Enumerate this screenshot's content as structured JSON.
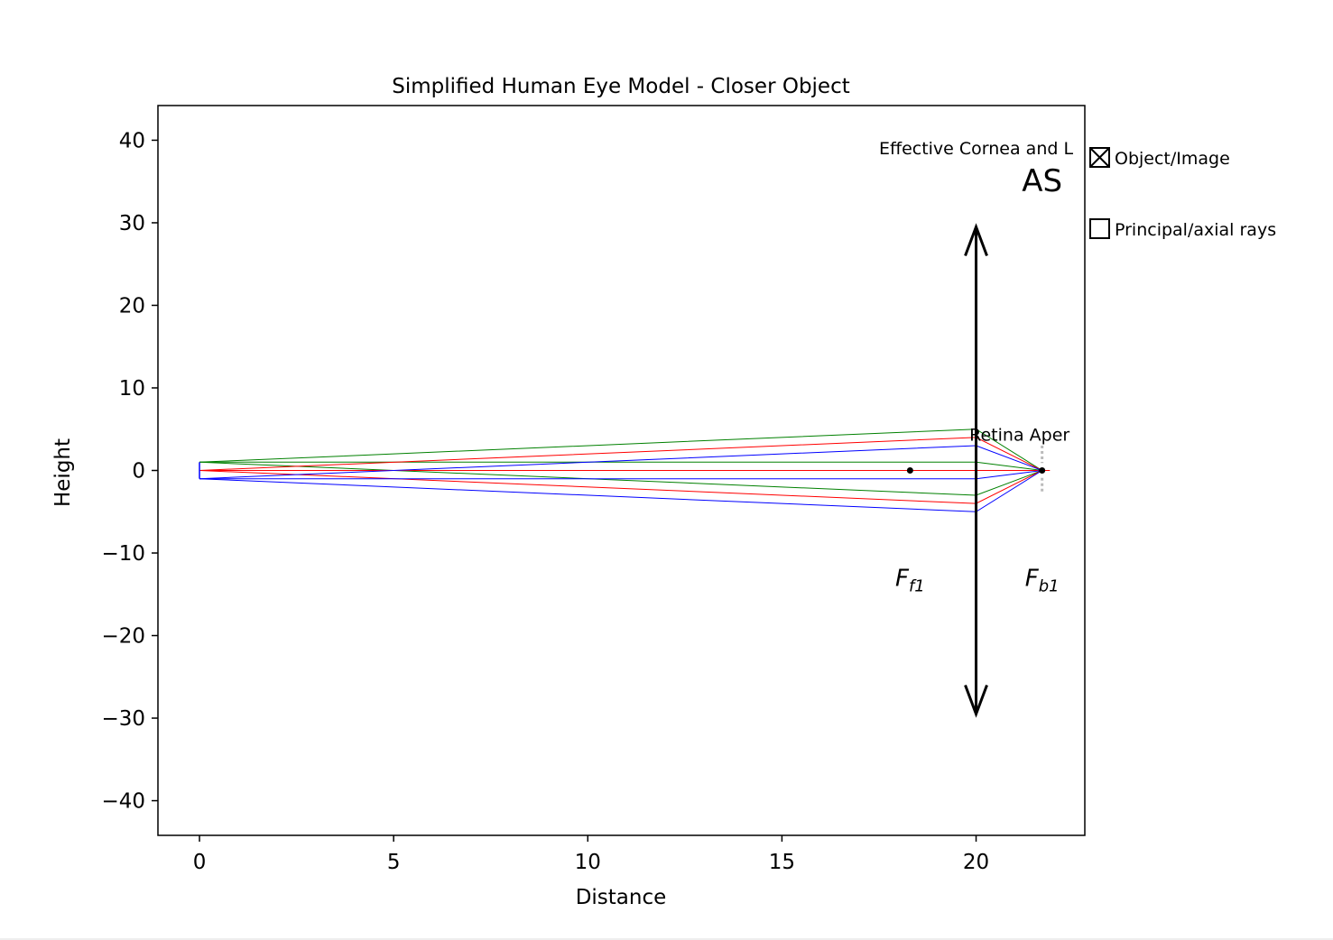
{
  "chart_data": {
    "type": "line",
    "title": "Simplified Human Eye Model - Closer Object",
    "xlabel": "Distance",
    "ylabel": "Height",
    "xlim": [
      -1.07,
      22.8
    ],
    "ylim": [
      -44.2,
      44.2
    ],
    "xticks": [
      0,
      5,
      10,
      15,
      20
    ],
    "xtick_labels": [
      "0",
      "5",
      "10",
      "15",
      "20"
    ],
    "yticks": [
      40,
      30,
      20,
      10,
      0,
      -10,
      -20,
      -30,
      -40
    ],
    "ytick_labels": [
      "40",
      "30",
      "20",
      "10",
      "0",
      "−10",
      "−20",
      "−30",
      "−40"
    ],
    "grid": false,
    "colors": {
      "green": "#008000",
      "red": "#ff0000",
      "blue": "#0000ff",
      "black": "#000000",
      "aperture": "#bbbbbb"
    },
    "object": {
      "x": 0,
      "y_top": 1,
      "y_bottom": -1
    },
    "lens": {
      "x": 20,
      "y_top": 29.5,
      "y_bottom": -29.5,
      "label": "Effective Cornea and L",
      "stop_label": "AS"
    },
    "aperture": {
      "x": 21.7,
      "y_top": 3,
      "y_bottom": -2.7,
      "label": "Retina Aper"
    },
    "focal_points": [
      {
        "x": 18.3,
        "y": 0,
        "label_main": "F",
        "label_sub": "f1"
      },
      {
        "x": 21.7,
        "y": 0,
        "label_main": "F",
        "label_sub": "b1"
      }
    ],
    "series": [
      {
        "color": "green",
        "points": [
          [
            0,
            1
          ],
          [
            20,
            5
          ],
          [
            21.7,
            0
          ]
        ]
      },
      {
        "color": "green",
        "points": [
          [
            0,
            1
          ],
          [
            20,
            1
          ],
          [
            21.7,
            0
          ]
        ]
      },
      {
        "color": "green",
        "points": [
          [
            0,
            1
          ],
          [
            20,
            -3
          ],
          [
            21.7,
            0
          ]
        ]
      },
      {
        "color": "red",
        "points": [
          [
            0,
            0
          ],
          [
            20,
            4
          ],
          [
            21.7,
            0
          ]
        ]
      },
      {
        "color": "red",
        "points": [
          [
            0,
            0
          ],
          [
            21.9,
            0
          ]
        ]
      },
      {
        "color": "red",
        "points": [
          [
            0,
            0
          ],
          [
            20,
            -4
          ],
          [
            21.7,
            0
          ]
        ]
      },
      {
        "color": "blue",
        "points": [
          [
            0,
            -1
          ],
          [
            20,
            3
          ],
          [
            21.7,
            0
          ]
        ]
      },
      {
        "color": "blue",
        "points": [
          [
            0,
            -1
          ],
          [
            20,
            -1
          ],
          [
            21.7,
            0
          ]
        ]
      },
      {
        "color": "blue",
        "points": [
          [
            0,
            -1
          ],
          [
            20,
            -5
          ],
          [
            21.7,
            0
          ]
        ]
      }
    ],
    "legend": {
      "placement": "right",
      "items": [
        {
          "label": "Object/Image",
          "checked": true
        },
        {
          "label": "Principal/axial rays",
          "checked": false
        }
      ]
    }
  }
}
